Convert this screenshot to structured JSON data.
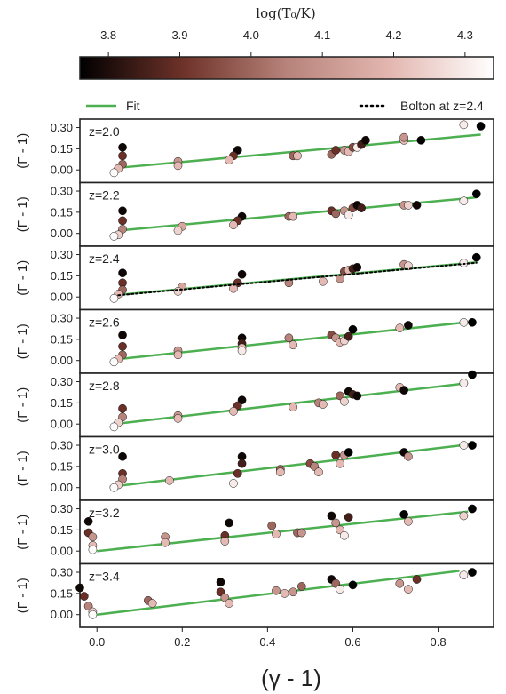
{
  "chart_data": {
    "type": "scatter",
    "colorbar": {
      "label": "log(T₀/K)",
      "ticks": [
        "3.8",
        "3.9",
        "4.0",
        "4.1",
        "4.2",
        "4.3"
      ],
      "tick_values": [
        3.8,
        3.9,
        4.0,
        4.1,
        4.2,
        4.3
      ],
      "range": [
        3.76,
        4.34
      ],
      "colors": [
        "#000000",
        "#6e3229",
        "#b7837a",
        "#e3b7b0",
        "#ffffff"
      ]
    },
    "legend": {
      "placement": "top",
      "entries": [
        {
          "label": "Fit",
          "style": "solid-green"
        },
        {
          "label": "Bolton at z=2.4",
          "style": "dotted-black"
        }
      ]
    },
    "xlabel": "(γ - 1)",
    "ylabel": "(Γ - 1)",
    "xlim": [
      -0.04,
      0.93
    ],
    "ylim": [
      -0.09,
      0.36
    ],
    "xticks": [
      "0.0",
      "0.2",
      "0.4",
      "0.6",
      "0.8"
    ],
    "xtick_values": [
      0.0,
      0.2,
      0.4,
      0.6,
      0.8
    ],
    "yticks": [
      "0.00",
      "0.15",
      "0.30"
    ],
    "ytick_values": [
      0.0,
      0.15,
      0.3
    ],
    "colors": {
      "fit": "#4caf50",
      "bolton": "#000000",
      "frame": "#222222"
    },
    "panels": [
      {
        "label": "z=2.0",
        "fit": {
          "x": [
            0.05,
            0.9
          ],
          "y": [
            0.015,
            0.25
          ]
        },
        "points": [
          [
            0.06,
            0.16,
            3.78
          ],
          [
            0.06,
            0.1,
            3.9
          ],
          [
            0.06,
            0.04,
            4.0
          ],
          [
            0.05,
            0.01,
            4.2
          ],
          [
            0.04,
            -0.02,
            4.33
          ],
          [
            0.19,
            0.06,
            4.1
          ],
          [
            0.19,
            0.03,
            4.2
          ],
          [
            0.33,
            0.14,
            3.78
          ],
          [
            0.32,
            0.1,
            3.9
          ],
          [
            0.31,
            0.07,
            4.2
          ],
          [
            0.46,
            0.1,
            4.0
          ],
          [
            0.47,
            0.1,
            4.2
          ],
          [
            0.55,
            0.11,
            4.0
          ],
          [
            0.56,
            0.14,
            3.9
          ],
          [
            0.58,
            0.14,
            4.1
          ],
          [
            0.59,
            0.13,
            4.2
          ],
          [
            0.6,
            0.16,
            3.95
          ],
          [
            0.61,
            0.16,
            4.3
          ],
          [
            0.62,
            0.18,
            3.85
          ],
          [
            0.63,
            0.21,
            3.78
          ],
          [
            0.72,
            0.21,
            4.2
          ],
          [
            0.72,
            0.23,
            4.1
          ],
          [
            0.76,
            0.21,
            3.76
          ],
          [
            0.86,
            0.32,
            4.3
          ],
          [
            0.9,
            0.31,
            3.76
          ]
        ]
      },
      {
        "label": "z=2.2",
        "fit": {
          "x": [
            0.05,
            0.89
          ],
          "y": [
            0.02,
            0.255
          ]
        },
        "points": [
          [
            0.06,
            0.16,
            3.78
          ],
          [
            0.06,
            0.09,
            3.9
          ],
          [
            0.06,
            0.03,
            4.05
          ],
          [
            0.05,
            -0.01,
            4.25
          ],
          [
            0.04,
            -0.02,
            4.33
          ],
          [
            0.2,
            0.05,
            4.15
          ],
          [
            0.19,
            0.02,
            4.25
          ],
          [
            0.34,
            0.12,
            3.78
          ],
          [
            0.33,
            0.09,
            3.9
          ],
          [
            0.32,
            0.06,
            4.2
          ],
          [
            0.45,
            0.12,
            4.0
          ],
          [
            0.46,
            0.12,
            4.2
          ],
          [
            0.55,
            0.16,
            3.9
          ],
          [
            0.56,
            0.14,
            4.0
          ],
          [
            0.58,
            0.16,
            4.1
          ],
          [
            0.59,
            0.13,
            4.3
          ],
          [
            0.6,
            0.18,
            3.95
          ],
          [
            0.61,
            0.2,
            3.78
          ],
          [
            0.62,
            0.18,
            3.85
          ],
          [
            0.72,
            0.2,
            4.1
          ],
          [
            0.73,
            0.2,
            4.25
          ],
          [
            0.75,
            0.2,
            3.78
          ],
          [
            0.86,
            0.23,
            4.3
          ],
          [
            0.89,
            0.28,
            3.76
          ]
        ]
      },
      {
        "label": "z=2.4",
        "fit": {
          "x": [
            0.05,
            0.89
          ],
          "y": [
            0.015,
            0.245
          ]
        },
        "bolton": {
          "x": [
            0.05,
            0.89
          ],
          "y": [
            0.012,
            0.242
          ]
        },
        "points": [
          [
            0.06,
            0.17,
            3.78
          ],
          [
            0.06,
            0.1,
            3.9
          ],
          [
            0.06,
            0.05,
            4.0
          ],
          [
            0.05,
            0.02,
            4.2
          ],
          [
            0.04,
            -0.01,
            4.33
          ],
          [
            0.2,
            0.07,
            4.15
          ],
          [
            0.19,
            0.04,
            4.25
          ],
          [
            0.34,
            0.16,
            3.78
          ],
          [
            0.33,
            0.1,
            3.9
          ],
          [
            0.32,
            0.06,
            4.2
          ],
          [
            0.45,
            0.1,
            4.05
          ],
          [
            0.53,
            0.11,
            4.2
          ],
          [
            0.57,
            0.13,
            4.1
          ],
          [
            0.58,
            0.18,
            3.95
          ],
          [
            0.59,
            0.19,
            4.2
          ],
          [
            0.6,
            0.2,
            3.85
          ],
          [
            0.61,
            0.21,
            3.78
          ],
          [
            0.72,
            0.23,
            4.1
          ],
          [
            0.73,
            0.22,
            4.25
          ],
          [
            0.86,
            0.24,
            4.3
          ],
          [
            0.89,
            0.28,
            3.76
          ]
        ]
      },
      {
        "label": "z=2.6",
        "fit": {
          "x": [
            0.05,
            0.88
          ],
          "y": [
            0.01,
            0.275
          ]
        },
        "points": [
          [
            0.06,
            0.18,
            3.78
          ],
          [
            0.06,
            0.1,
            3.9
          ],
          [
            0.06,
            0.04,
            4.0
          ],
          [
            0.05,
            0.01,
            4.2
          ],
          [
            0.04,
            -0.01,
            4.33
          ],
          [
            0.19,
            0.07,
            4.1
          ],
          [
            0.19,
            0.04,
            4.2
          ],
          [
            0.34,
            0.16,
            3.78
          ],
          [
            0.34,
            0.12,
            3.85
          ],
          [
            0.34,
            0.09,
            4.2
          ],
          [
            0.34,
            0.07,
            4.3
          ],
          [
            0.45,
            0.16,
            4.05
          ],
          [
            0.46,
            0.11,
            4.2
          ],
          [
            0.55,
            0.18,
            3.95
          ],
          [
            0.56,
            0.16,
            4.1
          ],
          [
            0.57,
            0.13,
            4.2
          ],
          [
            0.58,
            0.14,
            4.25
          ],
          [
            0.59,
            0.17,
            3.85
          ],
          [
            0.6,
            0.22,
            3.76
          ],
          [
            0.71,
            0.23,
            4.2
          ],
          [
            0.73,
            0.25,
            3.78
          ],
          [
            0.86,
            0.27,
            4.3
          ],
          [
            0.88,
            0.27,
            3.76
          ]
        ]
      },
      {
        "label": "z=2.8",
        "fit": {
          "x": [
            0.04,
            0.87
          ],
          "y": [
            0.0,
            0.29
          ]
        },
        "points": [
          [
            0.06,
            0.11,
            3.9
          ],
          [
            0.06,
            0.05,
            4.05
          ],
          [
            0.05,
            0.01,
            4.25
          ],
          [
            0.04,
            -0.02,
            4.33
          ],
          [
            0.19,
            0.06,
            4.1
          ],
          [
            0.19,
            0.04,
            4.2
          ],
          [
            0.34,
            0.17,
            3.78
          ],
          [
            0.33,
            0.13,
            3.9
          ],
          [
            0.32,
            0.09,
            4.2
          ],
          [
            0.46,
            0.12,
            4.2
          ],
          [
            0.52,
            0.15,
            4.05
          ],
          [
            0.53,
            0.14,
            4.2
          ],
          [
            0.57,
            0.2,
            4.0
          ],
          [
            0.58,
            0.16,
            4.25
          ],
          [
            0.59,
            0.23,
            3.78
          ],
          [
            0.6,
            0.21,
            3.85
          ],
          [
            0.61,
            0.2,
            3.78
          ],
          [
            0.71,
            0.26,
            4.2
          ],
          [
            0.72,
            0.24,
            3.78
          ],
          [
            0.86,
            0.29,
            4.3
          ],
          [
            0.88,
            0.35,
            3.76
          ]
        ]
      },
      {
        "label": "z=3.0",
        "fit": {
          "x": [
            0.03,
            0.87
          ],
          "y": [
            0.005,
            0.305
          ]
        },
        "points": [
          [
            0.06,
            0.22,
            3.78
          ],
          [
            0.06,
            0.1,
            3.9
          ],
          [
            0.06,
            0.06,
            4.05
          ],
          [
            0.05,
            0.02,
            4.25
          ],
          [
            0.04,
            0.0,
            4.33
          ],
          [
            0.17,
            0.05,
            4.2
          ],
          [
            0.34,
            0.22,
            3.78
          ],
          [
            0.34,
            0.17,
            3.85
          ],
          [
            0.33,
            0.1,
            3.9
          ],
          [
            0.32,
            0.03,
            4.3
          ],
          [
            0.43,
            0.13,
            4.0
          ],
          [
            0.43,
            0.11,
            4.2
          ],
          [
            0.5,
            0.17,
            3.95
          ],
          [
            0.51,
            0.15,
            4.05
          ],
          [
            0.52,
            0.11,
            4.2
          ],
          [
            0.56,
            0.23,
            3.9
          ],
          [
            0.57,
            0.17,
            4.2
          ],
          [
            0.58,
            0.23,
            4.1
          ],
          [
            0.59,
            0.25,
            3.76
          ],
          [
            0.72,
            0.25,
            3.78
          ],
          [
            0.73,
            0.22,
            4.1
          ],
          [
            0.86,
            0.3,
            4.3
          ],
          [
            0.88,
            0.3,
            3.76
          ]
        ]
      },
      {
        "label": "z=3.2",
        "fit": {
          "x": [
            0.0,
            0.87
          ],
          "y": [
            0.0,
            0.28
          ]
        },
        "points": [
          [
            -0.02,
            0.21,
            3.78
          ],
          [
            -0.02,
            0.13,
            3.9
          ],
          [
            -0.01,
            0.1,
            4.1
          ],
          [
            -0.01,
            0.04,
            4.2
          ],
          [
            -0.01,
            0.01,
            4.33
          ],
          [
            0.16,
            0.1,
            4.1
          ],
          [
            0.16,
            0.06,
            4.2
          ],
          [
            0.31,
            0.2,
            3.78
          ],
          [
            0.3,
            0.11,
            3.9
          ],
          [
            0.3,
            0.07,
            4.2
          ],
          [
            0.41,
            0.18,
            4.0
          ],
          [
            0.42,
            0.12,
            4.2
          ],
          [
            0.47,
            0.13,
            4.0
          ],
          [
            0.48,
            0.13,
            4.1
          ],
          [
            0.55,
            0.25,
            3.78
          ],
          [
            0.56,
            0.2,
            4.1
          ],
          [
            0.57,
            0.15,
            4.2
          ],
          [
            0.58,
            0.11,
            4.3
          ],
          [
            0.59,
            0.24,
            3.85
          ],
          [
            0.72,
            0.26,
            3.76
          ],
          [
            0.73,
            0.21,
            4.2
          ],
          [
            0.86,
            0.25,
            4.25
          ],
          [
            0.88,
            0.3,
            3.76
          ]
        ]
      },
      {
        "label": "z=3.4",
        "fit": {
          "x": [
            0.0,
            0.85
          ],
          "y": [
            0.0,
            0.31
          ]
        },
        "points": [
          [
            -0.04,
            0.19,
            3.78
          ],
          [
            -0.03,
            0.13,
            3.9
          ],
          [
            -0.02,
            0.06,
            4.05
          ],
          [
            -0.01,
            0.02,
            4.25
          ],
          [
            -0.01,
            0.0,
            4.33
          ],
          [
            0.12,
            0.1,
            4.0
          ],
          [
            0.13,
            0.08,
            4.2
          ],
          [
            0.29,
            0.23,
            3.78
          ],
          [
            0.29,
            0.16,
            3.9
          ],
          [
            0.3,
            0.12,
            4.1
          ],
          [
            0.31,
            0.08,
            4.2
          ],
          [
            0.42,
            0.17,
            4.1
          ],
          [
            0.44,
            0.15,
            4.2
          ],
          [
            0.46,
            0.16,
            4.1
          ],
          [
            0.48,
            0.2,
            4.0
          ],
          [
            0.55,
            0.25,
            3.78
          ],
          [
            0.56,
            0.22,
            4.0
          ],
          [
            0.57,
            0.18,
            4.3
          ],
          [
            0.6,
            0.21,
            3.76
          ],
          [
            0.71,
            0.22,
            4.1
          ],
          [
            0.73,
            0.18,
            4.2
          ],
          [
            0.75,
            0.25,
            3.9
          ],
          [
            0.86,
            0.28,
            4.3
          ],
          [
            0.88,
            0.3,
            3.76
          ]
        ]
      }
    ]
  }
}
